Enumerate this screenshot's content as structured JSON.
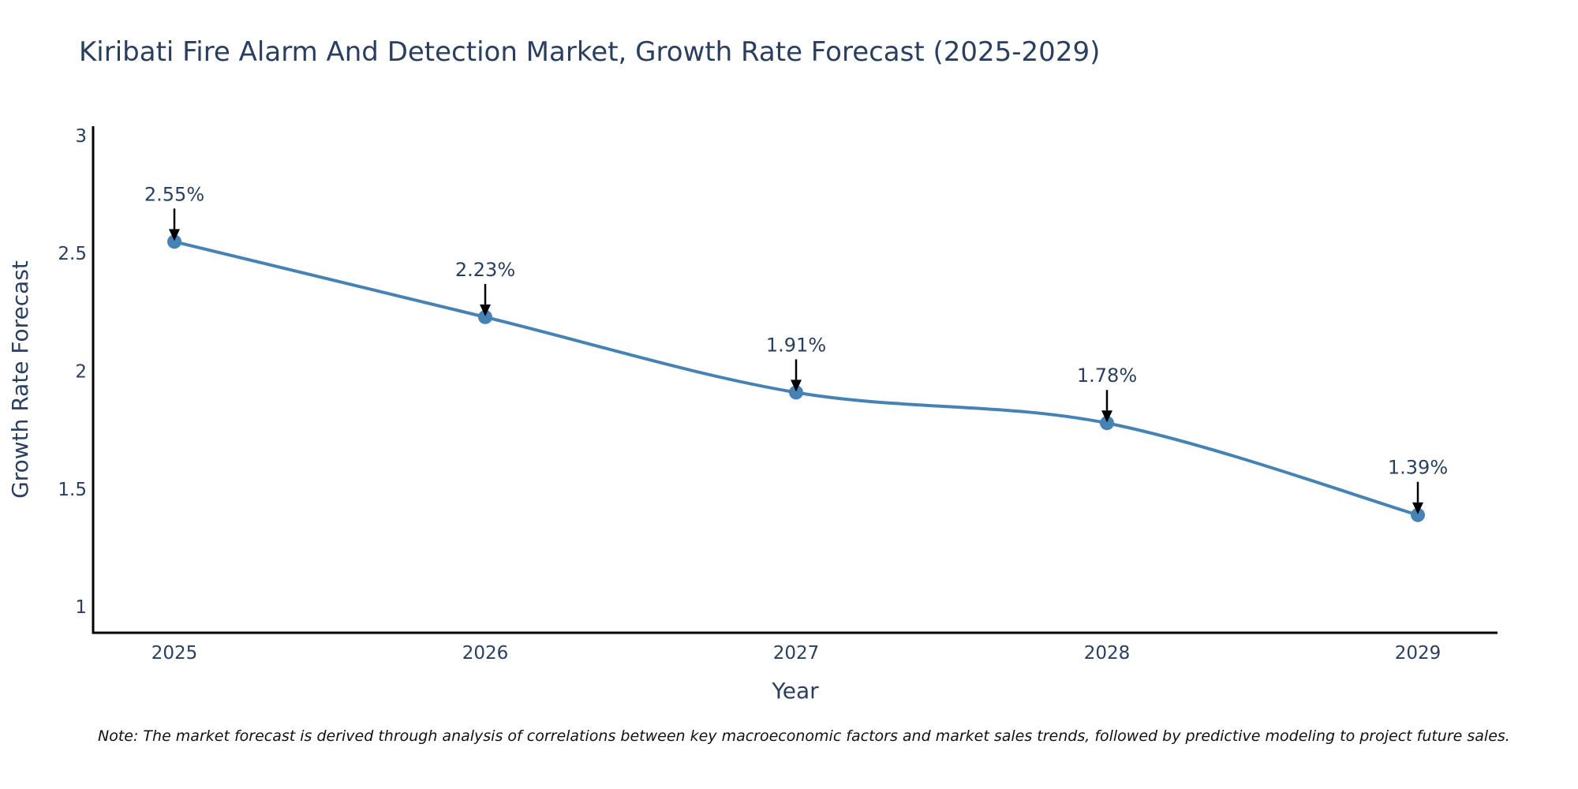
{
  "chart_data": {
    "type": "line",
    "title": "Kiribati Fire Alarm And Detection Market, Growth Rate Forecast (2025-2029)",
    "xlabel": "Year",
    "ylabel": "Growth Rate Forecast",
    "categories": [
      "2025",
      "2026",
      "2027",
      "2028",
      "2029"
    ],
    "series": [
      {
        "name": "Growth Rate Forecast",
        "values": [
          2.55,
          2.23,
          1.91,
          1.78,
          1.39
        ],
        "labels": [
          "2.55%",
          "2.23%",
          "1.91%",
          "1.78%",
          "1.39%"
        ],
        "color": "#4682b4"
      }
    ],
    "ylim": [
      0.89,
      3.04
    ],
    "yticks": [
      1,
      1.5,
      2,
      2.5,
      3
    ],
    "ytick_labels": [
      "1",
      "1.5",
      "2",
      "2.5",
      "3"
    ],
    "grid": false,
    "line_shape": "spline"
  },
  "note": "Note: The market forecast is derived through analysis of correlations between key macroeconomic factors and market sales trends, followed by predictive modeling to project future sales."
}
